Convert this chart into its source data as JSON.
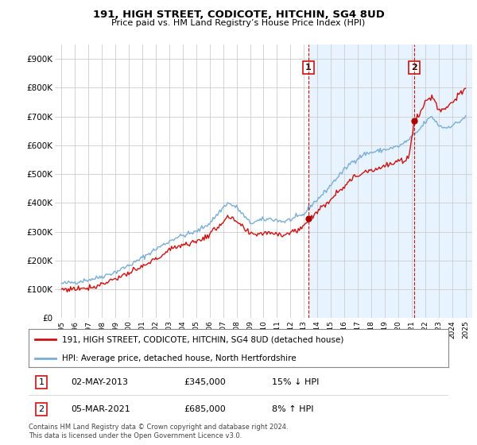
{
  "title": "191, HIGH STREET, CODICOTE, HITCHIN, SG4 8UD",
  "subtitle": "Price paid vs. HM Land Registry’s House Price Index (HPI)",
  "legend_line1": "191, HIGH STREET, CODICOTE, HITCHIN, SG4 8UD (detached house)",
  "legend_line2": "HPI: Average price, detached house, North Hertfordshire",
  "transaction1_date": "02-MAY-2013",
  "transaction1_price": "£345,000",
  "transaction1_hpi": "15% ↓ HPI",
  "transaction2_date": "05-MAR-2021",
  "transaction2_price": "£685,000",
  "transaction2_hpi": "8% ↑ HPI",
  "footer": "Contains HM Land Registry data © Crown copyright and database right 2024.\nThis data is licensed under the Open Government Licence v3.0.",
  "hpi_color": "#7aaed4",
  "price_color": "#cc1111",
  "marker_color": "#aa0000",
  "grid_color": "#cccccc",
  "background_color": "#ffffff",
  "highlight_bg": "#ddeeff",
  "ylim": [
    0,
    950000
  ],
  "yticks": [
    0,
    100000,
    200000,
    300000,
    400000,
    500000,
    600000,
    700000,
    800000,
    900000
  ],
  "ytick_labels": [
    "£0",
    "£100K",
    "£200K",
    "£300K",
    "£400K",
    "£500K",
    "£600K",
    "£700K",
    "£800K",
    "£900K"
  ],
  "year_start": 1995,
  "year_end": 2025,
  "transaction1_year": 2013.33,
  "transaction2_year": 2021.17,
  "t1_price": 345000,
  "t2_price": 685000
}
